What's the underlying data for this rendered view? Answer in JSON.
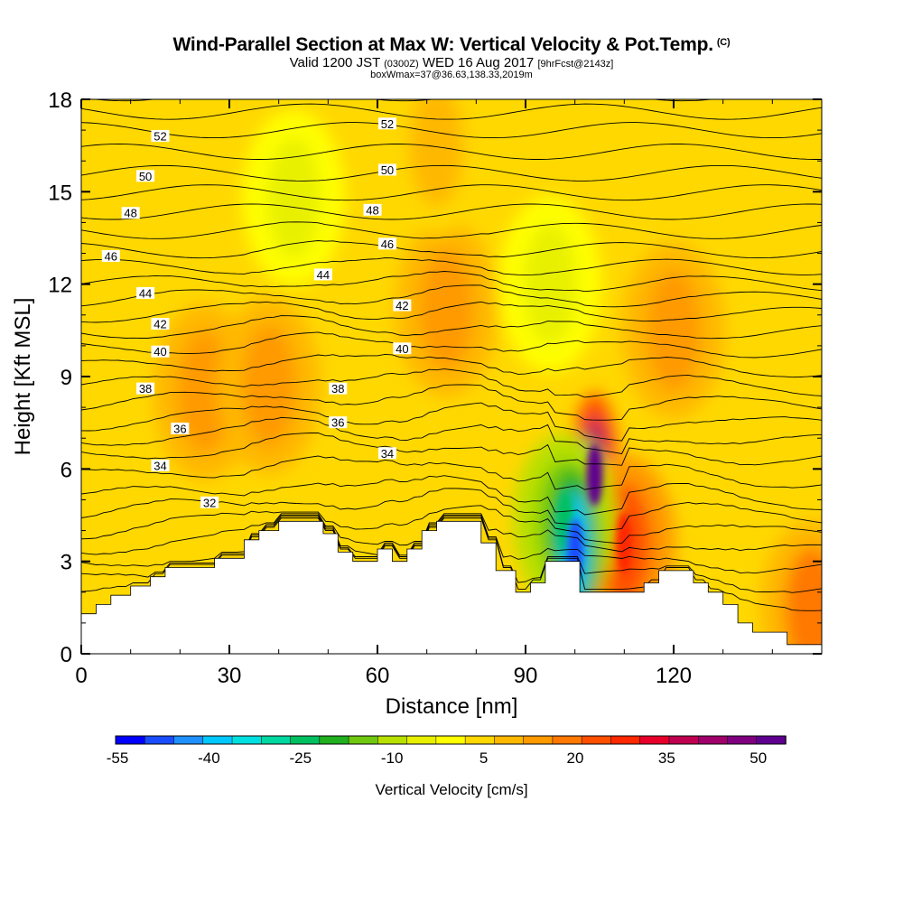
{
  "header": {
    "title": "Wind-Parallel Section at Max W: Vertical Velocity & Pot.Temp.",
    "title_mark": "(C)",
    "subtitle_a": "Valid 1200 JST",
    "subtitle_b": "(0300Z)",
    "subtitle_c": "WED 16 Aug 2017",
    "subtitle_d": "[9hrFcst@2143z]",
    "subtitle2": "boxWmax=37@36.63,138.33,2019m"
  },
  "chart_data": {
    "type": "heatmap",
    "title": "Wind-Parallel Section at Max W: Vertical Velocity & Pot.Temp.",
    "xlabel": "Distance [nm]",
    "ylabel": "Height [Kft MSL]",
    "xlim": [
      0,
      150
    ],
    "ylim": [
      0,
      18
    ],
    "x_ticks": [
      "0",
      "30",
      "60",
      "90",
      "120"
    ],
    "y_ticks": [
      "0",
      "3",
      "6",
      "9",
      "12",
      "15",
      "18"
    ],
    "x_tick_values": [
      0,
      30,
      60,
      90,
      120
    ],
    "y_tick_values": [
      0,
      3,
      6,
      9,
      12,
      15,
      18
    ],
    "colorbar": {
      "label": "Vertical Velocity [cm/s]",
      "tick_labels": [
        "-55",
        "-40",
        "-25",
        "-10",
        "5",
        "20",
        "35",
        "50"
      ],
      "tick_values": [
        -55,
        -40,
        -25,
        -10,
        5,
        20,
        35,
        50
      ],
      "colors": [
        "#0000ff",
        "#1a4cff",
        "#2090ff",
        "#00c8ff",
        "#00e0e0",
        "#00d8a0",
        "#00c060",
        "#20b020",
        "#70c810",
        "#b8e000",
        "#e8f000",
        "#ffff00",
        "#ffd800",
        "#ffb800",
        "#ff9a00",
        "#ff7800",
        "#ff5000",
        "#ff2800",
        "#e8002a",
        "#c00050",
        "#a0006a",
        "#800080",
        "#600090"
      ]
    },
    "terrain_kft": [
      [
        0,
        1.3
      ],
      [
        3,
        1.3
      ],
      [
        3,
        1.6
      ],
      [
        6,
        1.6
      ],
      [
        6,
        1.9
      ],
      [
        10,
        1.9
      ],
      [
        10,
        2.2
      ],
      [
        14,
        2.2
      ],
      [
        14,
        2.5
      ],
      [
        17,
        2.5
      ],
      [
        17,
        2.8
      ],
      [
        27,
        2.8
      ],
      [
        27,
        3.1
      ],
      [
        33,
        3.1
      ],
      [
        33,
        3.7
      ],
      [
        36,
        3.7
      ],
      [
        36,
        4.0
      ],
      [
        40,
        4.0
      ],
      [
        40,
        4.3
      ],
      [
        49,
        4.3
      ],
      [
        49,
        3.9
      ],
      [
        52,
        3.9
      ],
      [
        52,
        3.3
      ],
      [
        55,
        3.3
      ],
      [
        55,
        3.0
      ],
      [
        60,
        3.0
      ],
      [
        60,
        3.4
      ],
      [
        63,
        3.4
      ],
      [
        63,
        3.0
      ],
      [
        66,
        3.0
      ],
      [
        66,
        3.4
      ],
      [
        69,
        3.4
      ],
      [
        69,
        4.0
      ],
      [
        72,
        4.0
      ],
      [
        72,
        4.3
      ],
      [
        81,
        4.3
      ],
      [
        81,
        3.6
      ],
      [
        84,
        3.6
      ],
      [
        84,
        2.7
      ],
      [
        88,
        2.7
      ],
      [
        88,
        2.0
      ],
      [
        91,
        2.0
      ],
      [
        91,
        2.3
      ],
      [
        94,
        2.3
      ],
      [
        94,
        3.0
      ],
      [
        101,
        3.0
      ],
      [
        101,
        2.0
      ],
      [
        114,
        2.0
      ],
      [
        114,
        2.3
      ],
      [
        117,
        2.3
      ],
      [
        117,
        2.7
      ],
      [
        124,
        2.7
      ],
      [
        124,
        2.3
      ],
      [
        127,
        2.3
      ],
      [
        127,
        2.0
      ],
      [
        130,
        2.0
      ],
      [
        130,
        1.6
      ],
      [
        133,
        1.6
      ],
      [
        133,
        1.0
      ],
      [
        136,
        1.0
      ],
      [
        136,
        0.7
      ],
      [
        143,
        0.7
      ],
      [
        143,
        0.3
      ],
      [
        150,
        0.3
      ]
    ],
    "theta_contours": [
      {
        "level": 32,
        "label": "32",
        "label_x": 26,
        "label_h": 4.9
      },
      {
        "level": 34,
        "label": "34",
        "label_x": 16,
        "label_h": 6.1
      },
      {
        "level": 34,
        "label": "34",
        "label_x": 62,
        "label_h": 6.5
      },
      {
        "level": 36,
        "label": "36",
        "label_x": 20,
        "label_h": 7.3
      },
      {
        "level": 36,
        "label": "36",
        "label_x": 52,
        "label_h": 7.5
      },
      {
        "level": 38,
        "label": "38",
        "label_x": 13,
        "label_h": 8.6
      },
      {
        "level": 38,
        "label": "38",
        "label_x": 52,
        "label_h": 8.6
      },
      {
        "level": 40,
        "label": "40",
        "label_x": 16,
        "label_h": 9.8
      },
      {
        "level": 40,
        "label": "40",
        "label_x": 65,
        "label_h": 9.9
      },
      {
        "level": 42,
        "label": "42",
        "label_x": 16,
        "label_h": 10.7
      },
      {
        "level": 42,
        "label": "42",
        "label_x": 65,
        "label_h": 11.3
      },
      {
        "level": 44,
        "label": "44",
        "label_x": 13,
        "label_h": 11.7
      },
      {
        "level": 44,
        "label": "44",
        "label_x": 49,
        "label_h": 12.3
      },
      {
        "level": 46,
        "label": "46",
        "label_x": 6,
        "label_h": 12.9
      },
      {
        "level": 46,
        "label": "46",
        "label_x": 62,
        "label_h": 13.3
      },
      {
        "level": 48,
        "label": "48",
        "label_x": 10,
        "label_h": 14.3
      },
      {
        "level": 48,
        "label": "48",
        "label_x": 59,
        "label_h": 14.4
      },
      {
        "level": 50,
        "label": "50",
        "label_x": 13,
        "label_h": 15.5
      },
      {
        "level": 50,
        "label": "50",
        "label_x": 62,
        "label_h": 15.7
      },
      {
        "level": 52,
        "label": "52",
        "label_x": 16,
        "label_h": 16.8
      },
      {
        "level": 52,
        "label": "52",
        "label_x": 62,
        "label_h": 17.2
      }
    ],
    "w_features_cm_s": [
      {
        "x": 25,
        "h": 8.5,
        "w": 12
      },
      {
        "x": 38,
        "h": 8.7,
        "w": 14
      },
      {
        "x": 74,
        "h": 11.2,
        "w": 12
      },
      {
        "x": 72,
        "h": 16.5,
        "w": 10
      },
      {
        "x": 104,
        "h": 5.8,
        "w": 52
      },
      {
        "x": 110,
        "h": 3.6,
        "w": 25
      },
      {
        "x": 98,
        "h": 4.3,
        "w": -24
      },
      {
        "x": 100,
        "h": 3.4,
        "w": -48
      },
      {
        "x": 43,
        "h": 14.8,
        "w": -8
      },
      {
        "x": 95,
        "h": 12.0,
        "w": -10
      },
      {
        "x": 120,
        "h": 10.5,
        "w": 14
      },
      {
        "x": 148,
        "h": 1.5,
        "w": 18
      }
    ]
  }
}
